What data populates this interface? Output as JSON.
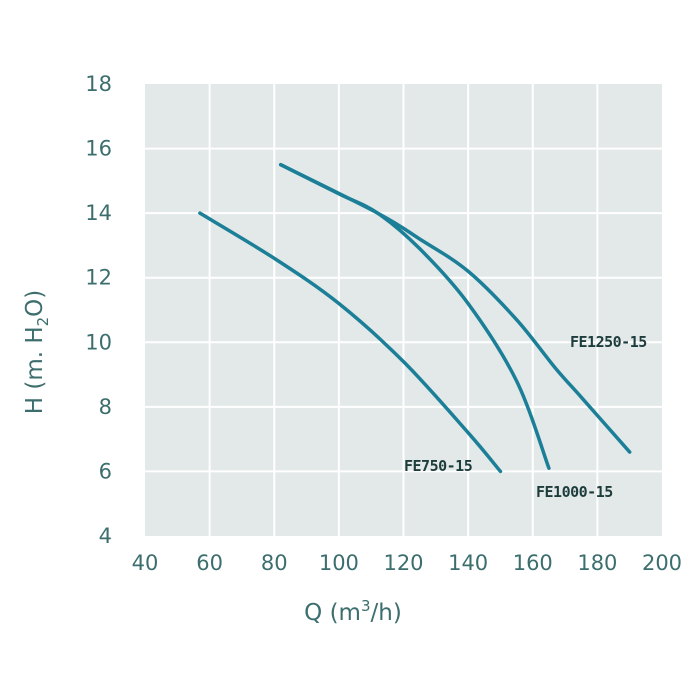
{
  "chart_data": {
    "type": "line",
    "xlabel": {
      "pre": "Q (m",
      "sup": "3",
      "post": "/h)"
    },
    "ylabel": {
      "pre": "H (m. H",
      "sub": "2",
      "post": "O)"
    },
    "xlim": [
      40,
      200
    ],
    "ylim": [
      4,
      18
    ],
    "xticks": [
      40,
      60,
      80,
      100,
      120,
      140,
      160,
      180,
      200
    ],
    "yticks": [
      4,
      6,
      8,
      10,
      12,
      14,
      16,
      18
    ],
    "grid": true,
    "colors": {
      "plot_bg": "#e3e8e8",
      "grid": "#ffffff",
      "line": "#1b7f98",
      "text": "#3d6e6e"
    },
    "series": [
      {
        "name": "FE750-15",
        "x": [
          57,
          80,
          100,
          120,
          140,
          150
        ],
        "y": [
          14.0,
          12.6,
          11.2,
          9.4,
          7.2,
          6.0
        ]
      },
      {
        "name": "FE1000-15",
        "x": [
          82,
          100,
          112,
          125,
          140,
          155,
          165
        ],
        "y": [
          15.5,
          14.6,
          14.0,
          12.9,
          11.2,
          8.8,
          6.1
        ]
      },
      {
        "name": "FE1250-15",
        "x": [
          82,
          112,
          125,
          140,
          155,
          167,
          175,
          190
        ],
        "y": [
          15.5,
          14.0,
          13.2,
          12.2,
          10.7,
          9.2,
          8.3,
          6.6
        ]
      }
    ]
  }
}
